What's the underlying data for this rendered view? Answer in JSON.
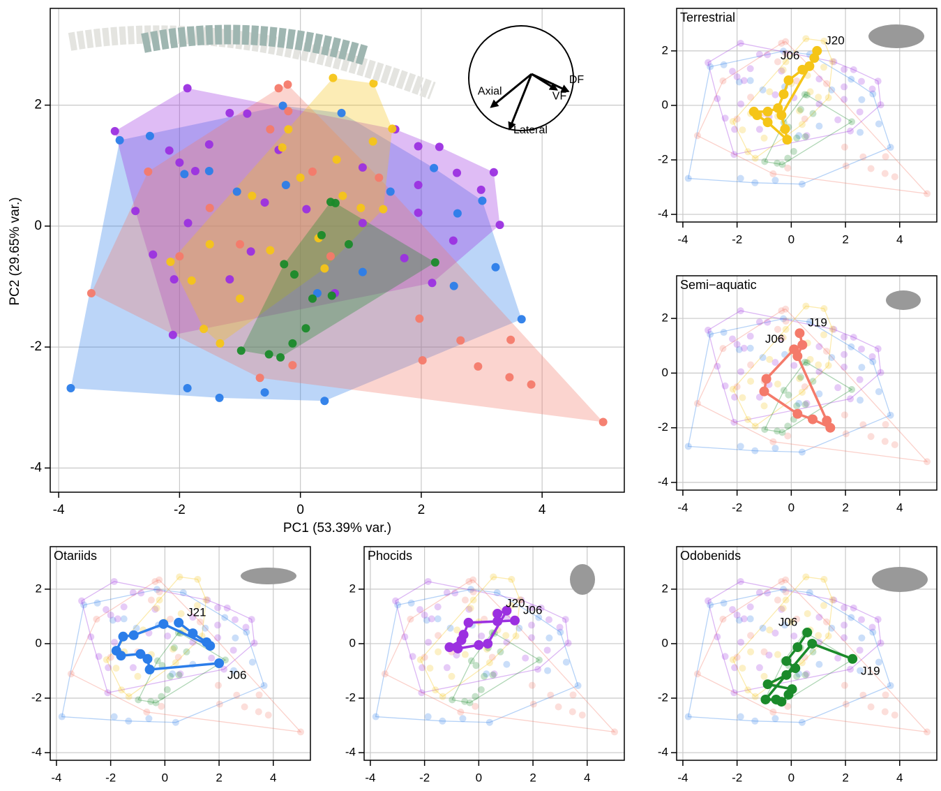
{
  "chart_data": [
    {
      "type": "scatter",
      "xlabel": "PC1 (53.39% var.)",
      "ylabel": "PC2 (29.65% var.)",
      "xlim": [
        -4.14,
        5.36
      ],
      "ylim": [
        -4.4,
        3.6
      ],
      "xticks": [
        -4,
        -2,
        0,
        2,
        4
      ],
      "yticks": [
        -4,
        -2,
        0,
        2
      ],
      "grid": true,
      "series": [
        {
          "color": "#2b7de9",
          "x": [
            -3.8,
            -2.99,
            0.4,
            3.66,
            3.01,
            -2.49,
            0.68,
            2.21,
            2.6,
            3.23,
            2.54,
            -1.87,
            -1.34,
            -0.59,
            -1.51,
            -1.05,
            -0.24,
            1.03,
            0.28,
            -0.29,
            -1.92,
            1.49
          ],
          "y": [
            -2.68,
            1.42,
            -2.89,
            -1.54,
            0.42,
            1.49,
            1.87,
            0.96,
            0.21,
            -0.68,
            -0.99,
            -2.68,
            -2.84,
            -2.75,
            0.91,
            0.57,
            0.68,
            -0.76,
            -1.11,
            1.99,
            0.86,
            0.57
          ]
        },
        {
          "color": "#9b30e0",
          "x": [
            -3.07,
            -1.87,
            1.57,
            2.3,
            3.2,
            3.3,
            2.99,
            2.18,
            -2.11,
            -2.73,
            -2.17,
            -2.0,
            -1.74,
            -1.51,
            -1.17,
            -0.88,
            -0.36,
            0.1,
            1.03,
            1.95,
            1.95,
            1.72,
            -2.44,
            -2.09,
            -1.17,
            0.57,
            2.53,
            2.59,
            1.95,
            -1.86,
            -0.59,
            -0.82,
            1.03
          ],
          "y": [
            1.57,
            2.28,
            1.6,
            1.31,
            0.89,
            0.02,
            0.6,
            -0.94,
            -1.8,
            0.25,
            1.25,
            1.05,
            0.91,
            1.35,
            1.87,
            1.86,
            1.26,
            0.28,
            0.97,
            1.32,
            0.22,
            -0.53,
            -0.47,
            -0.88,
            -0.88,
            -1.11,
            -0.24,
            0.88,
            0.68,
            0.05,
            0.39,
            -0.42,
            0.05
          ]
        },
        {
          "color": "#f47a6a",
          "x": [
            -3.46,
            -0.36,
            -0.21,
            5.01,
            3.82,
            2.02,
            -0.67,
            -2.52,
            3.48,
            2.94,
            3.46,
            2.65,
            1.97,
            -0.13,
            -1.5,
            -0.5,
            0.2,
            -1.0,
            0.5,
            1.3,
            -2.0,
            -0.2
          ],
          "y": [
            -1.11,
            2.28,
            2.34,
            -3.24,
            -2.62,
            -2.22,
            -2.51,
            0.9,
            -1.88,
            -2.32,
            -2.5,
            -1.89,
            -1.53,
            -2.3,
            0.3,
            1.6,
            0.9,
            -0.3,
            -0.5,
            0.8,
            -0.5,
            1.9
          ]
        },
        {
          "color": "#f5c518",
          "x": [
            0.54,
            1.21,
            1.52,
            1.37,
            -1.33,
            -2.15,
            -1.6,
            -0.3,
            0.0,
            0.6,
            1.2,
            -0.8,
            -1.5,
            -0.5,
            0.3,
            1.0,
            -1.0,
            -1.8,
            0.7,
            -0.2,
            0.4
          ],
          "y": [
            2.45,
            2.36,
            1.61,
            0.28,
            -1.94,
            -0.59,
            -1.7,
            1.3,
            0.8,
            1.1,
            1.4,
            0.5,
            -0.3,
            -0.4,
            -0.2,
            0.3,
            -1.2,
            -0.9,
            0.5,
            1.6,
            -0.7
          ]
        },
        {
          "color": "#1a8a2a",
          "x": [
            -0.98,
            -0.52,
            -0.33,
            -0.13,
            0.09,
            0.52,
            2.23,
            0.5,
            0.58,
            0.35,
            -0.27,
            -0.1,
            0.2,
            0.8
          ],
          "y": [
            -2.06,
            -2.12,
            -2.17,
            -1.94,
            -1.69,
            -1.15,
            -0.6,
            0.4,
            0.38,
            -0.15,
            -0.63,
            -0.8,
            -1.2,
            -0.3
          ]
        }
      ],
      "loadings": [
        {
          "label": "Axial",
          "x": -0.57,
          "y": -0.55
        },
        {
          "label": "Lateral",
          "x": -0.22,
          "y": -0.97
        },
        {
          "label": "DF",
          "x": 0.9,
          "y": -0.25
        },
        {
          "label": "VF",
          "x": 0.68,
          "y": -0.22
        }
      ]
    },
    {
      "type": "trajectory",
      "title": "Terrestrial",
      "xlim": [
        -4.23,
        5.37
      ],
      "ylim": [
        -4.28,
        3.56
      ],
      "xticks": [
        -4,
        -2,
        0,
        2,
        4
      ],
      "yticks": [
        -4,
        -2,
        0,
        2
      ],
      "series": [
        {
          "color": "#f5c518",
          "x": [
            0.67,
            0.41,
            -0.1,
            -0.28,
            -0.49,
            -0.87,
            -1.38,
            -1.26,
            -0.87,
            -0.15,
            -0.23,
            -0.36,
            0.85,
            0.95
          ],
          "y": [
            1.44,
            1.31,
            0.92,
            0.41,
            -0.1,
            -0.23,
            -0.23,
            -0.36,
            -0.62,
            -1.26,
            -0.87,
            -0.36,
            1.74,
            2.0
          ],
          "labels": [
            "J06",
            null,
            null,
            null,
            null,
            null,
            null,
            null,
            null,
            null,
            null,
            null,
            null,
            "J20"
          ]
        }
      ]
    },
    {
      "type": "trajectory",
      "title": "Semi−aquatic",
      "xlim": [
        -4.23,
        5.37
      ],
      "ylim": [
        -4.28,
        3.56
      ],
      "xticks": [
        -4,
        -2,
        0,
        2,
        4
      ],
      "yticks": [
        -4,
        -2,
        0,
        2
      ],
      "series": [
        {
          "color": "#f47a6a",
          "x": [
            0.1,
            -0.92,
            -1.0,
            0.23,
            0.79,
            1.44,
            1.31,
            0.23,
            0.41,
            0.31
          ],
          "y": [
            0.87,
            -0.21,
            -0.67,
            -1.49,
            -1.69,
            -2.0,
            -1.74,
            0.62,
            1.03,
            1.46
          ],
          "labels": [
            "J06",
            null,
            null,
            null,
            null,
            null,
            null,
            null,
            null,
            "J19"
          ]
        }
      ]
    },
    {
      "type": "trajectory",
      "title": "Otariids",
      "xlim": [
        -4.23,
        5.37
      ],
      "ylim": [
        -4.28,
        3.56
      ],
      "xticks": [
        -4,
        -2,
        0,
        2,
        4
      ],
      "yticks": [
        -4,
        -2,
        0,
        2
      ],
      "series": [
        {
          "color": "#2b7de9",
          "x": [
            2.0,
            -0.56,
            -0.64,
            -0.9,
            -1.62,
            -1.79,
            -1.54,
            -1.15,
            -0.05,
            1.67,
            1.54,
            1.03,
            0.51
          ],
          "y": [
            -0.72,
            -0.95,
            -0.56,
            -0.38,
            -0.44,
            -0.26,
            0.26,
            0.31,
            0.72,
            -0.08,
            0.05,
            0.38,
            0.77
          ],
          "labels": [
            "J06",
            null,
            null,
            null,
            null,
            null,
            null,
            null,
            null,
            null,
            null,
            null,
            "J21"
          ]
        }
      ]
    },
    {
      "type": "trajectory",
      "title": "Phocids",
      "xlim": [
        -4.23,
        5.37
      ],
      "ylim": [
        -4.28,
        3.56
      ],
      "xticks": [
        -4,
        -2,
        0,
        2,
        4
      ],
      "yticks": [
        -4,
        -2,
        0,
        2
      ],
      "series": [
        {
          "color": "#9b30e0",
          "x": [
            1.33,
            0.69,
            -0.38,
            -0.56,
            -0.64,
            -1.08,
            -0.77,
            0.0,
            0.33,
            1.03,
            0.69
          ],
          "y": [
            0.85,
            0.82,
            0.77,
            0.33,
            0.13,
            -0.13,
            -0.18,
            -0.05,
            0.0,
            1.21,
            1.1
          ],
          "labels": [
            "J06",
            null,
            null,
            null,
            null,
            null,
            null,
            null,
            null,
            null,
            "J20"
          ]
        }
      ]
    },
    {
      "type": "trajectory",
      "title": "Odobenids",
      "xlim": [
        -4.23,
        5.37
      ],
      "ylim": [
        -4.28,
        3.56
      ],
      "xticks": [
        -4,
        -2,
        0,
        2,
        4
      ],
      "yticks": [
        -4,
        -2,
        0,
        2
      ],
      "series": [
        {
          "color": "#1a8a2a",
          "x": [
            0.59,
            0.23,
            -0.18,
            0.15,
            -0.18,
            -0.87,
            0.03,
            -0.1,
            -0.36,
            -0.56,
            -0.95,
            0.77,
            2.26
          ],
          "y": [
            0.41,
            -0.13,
            -0.64,
            -0.9,
            -1.15,
            -1.49,
            -1.67,
            -1.87,
            -2.13,
            -2.05,
            -2.05,
            0.0,
            -0.56
          ],
          "labels": [
            "J06",
            null,
            null,
            null,
            null,
            null,
            null,
            null,
            null,
            null,
            null,
            null,
            "J19"
          ]
        }
      ]
    }
  ]
}
